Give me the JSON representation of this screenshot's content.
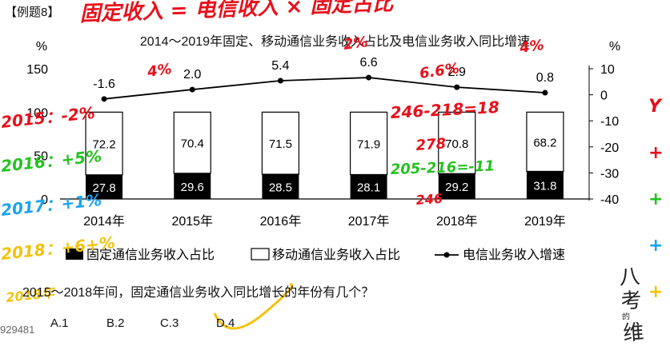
{
  "header": {
    "example_tag": "【例题8】"
  },
  "chart_data": {
    "type": "bar",
    "title": "2014～2019年固定、移动通信业务收入占比及电信业务收入同比增速",
    "categories": [
      "2014年",
      "2015年",
      "2016年",
      "2017年",
      "2018年",
      "2019年"
    ],
    "series": [
      {
        "name": "固定通信业务收入占比",
        "kind": "stacked-bar",
        "values": [
          27.8,
          29.6,
          28.5,
          28.1,
          29.2,
          31.8
        ]
      },
      {
        "name": "移动通信业务收入占比",
        "kind": "stacked-bar",
        "values": [
          72.2,
          70.4,
          71.5,
          71.9,
          70.8,
          68.2
        ]
      },
      {
        "name": "电信业务收入增速",
        "kind": "line",
        "axis": "right",
        "values": [
          -1.6,
          2.0,
          5.4,
          6.6,
          2.9,
          0.8
        ]
      }
    ],
    "left_axis": {
      "unit": "%",
      "ylim": [
        0,
        150
      ],
      "ticks": [
        "0",
        "50",
        "100",
        "150"
      ]
    },
    "right_axis": {
      "unit": "%",
      "ylim": [
        -40,
        10
      ],
      "ticks": [
        "10",
        "0",
        "-10",
        "-20",
        "-30",
        "-40"
      ]
    },
    "legend": [
      "固定通信业务收入占比",
      "移动通信业务收入占比",
      "电信业务收入增速"
    ],
    "legend_position": "bottom",
    "grid": false
  },
  "question": {
    "text": "2015～2018年间，固定通信业务收入同比增长的年份有几个？",
    "options": [
      "A.1",
      "B.2",
      "C.3",
      "D.4"
    ]
  },
  "annotations": {
    "top_formula": "固定收入 = 电信收入 × 固定占比",
    "ratio_notes": [
      "2015：-2%",
      "2016：+5%",
      "2017：+1%",
      "2018：+6+%"
    ],
    "arith_notes": [
      "246-218=18",
      "205-216=-11",
      "278",
      "246"
    ],
    "growth_notes": [
      "4%",
      "2%",
      "6.6%",
      "4%"
    ],
    "right_signs": [
      "Y",
      "+",
      "+",
      "+",
      "+"
    ],
    "answer_mark": "✓",
    "corner_year": "2018年"
  },
  "watermark": {
    "id": "929481",
    "logo_lines": [
      "八",
      "考",
      "的",
      "维"
    ]
  },
  "colors": {
    "bar_fixed": "#000000",
    "bar_mobile": "#ffffff",
    "ink_red": "#e8101a",
    "ink_green": "#25c21f",
    "ink_blue": "#1aa3ef",
    "ink_yellow": "#f4c20d"
  }
}
